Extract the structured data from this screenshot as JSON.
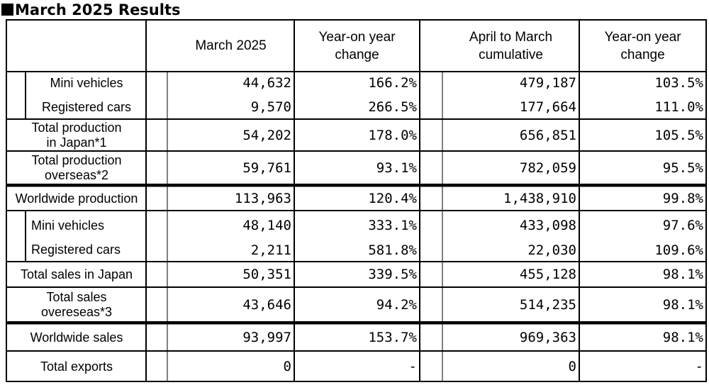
{
  "title": "March 2025 Results",
  "headers": {
    "month": "March 2025",
    "month_yoy": "Year-on year\nchange",
    "cumulative": "April to March\ncumulative",
    "cumulative_yoy": "Year-on year\nchange"
  },
  "rows": [
    {
      "label": "Mini vehicles",
      "march": "44,632",
      "march_yoy": "166.2%",
      "cumulative": "479,187",
      "cumulative_yoy": "103.5%"
    },
    {
      "label": "Registered cars",
      "march": "9,570",
      "march_yoy": "266.5%",
      "cumulative": "177,664",
      "cumulative_yoy": "111.0%"
    },
    {
      "label": "Total production\nin Japan*1",
      "march": "54,202",
      "march_yoy": "178.0%",
      "cumulative": "656,851",
      "cumulative_yoy": "105.5%"
    },
    {
      "label": "Total production\noverseas*2",
      "march": "59,761",
      "march_yoy": "93.1%",
      "cumulative": "782,059",
      "cumulative_yoy": "95.5%"
    },
    {
      "label": "Worldwide production",
      "march": "113,963",
      "march_yoy": "120.4%",
      "cumulative": "1,438,910",
      "cumulative_yoy": "99.8%"
    },
    {
      "label": "Mini vehicles",
      "march": "48,140",
      "march_yoy": "333.1%",
      "cumulative": "433,098",
      "cumulative_yoy": "97.6%"
    },
    {
      "label": "Registered cars",
      "march": "2,211",
      "march_yoy": "581.8%",
      "cumulative": "22,030",
      "cumulative_yoy": "109.6%"
    },
    {
      "label": "Total sales in Japan",
      "march": "50,351",
      "march_yoy": "339.5%",
      "cumulative": "455,128",
      "cumulative_yoy": "98.1%"
    },
    {
      "label": "Total sales\novereseas*3",
      "march": "43,646",
      "march_yoy": "94.2%",
      "cumulative": "514,235",
      "cumulative_yoy": "98.1%"
    },
    {
      "label": "Worldwide sales",
      "march": "93,997",
      "march_yoy": "153.7%",
      "cumulative": "969,363",
      "cumulative_yoy": "98.1%"
    },
    {
      "label": "Total exports",
      "march": "0",
      "march_yoy": "-",
      "cumulative": "0",
      "cumulative_yoy": "-"
    }
  ]
}
